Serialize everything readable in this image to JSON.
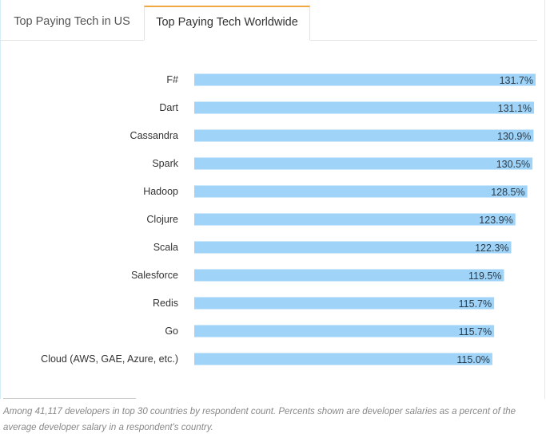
{
  "tabs": [
    {
      "label": "Top Paying Tech in US",
      "active": false
    },
    {
      "label": "Top Paying Tech Worldwide",
      "active": true
    }
  ],
  "colors": {
    "bar": "#9fd3f7",
    "bar_label": "#2a3b4a",
    "category_label": "#333333",
    "active_tab_accent": "#f0a940"
  },
  "chart_data": {
    "type": "bar",
    "orientation": "horizontal",
    "categories": [
      "F#",
      "Dart",
      "Cassandra",
      "Spark",
      "Hadoop",
      "Clojure",
      "Scala",
      "Salesforce",
      "Redis",
      "Go",
      "Cloud (AWS, GAE, Azure, etc.)"
    ],
    "values": [
      131.7,
      131.1,
      130.9,
      130.5,
      128.5,
      123.9,
      122.3,
      119.5,
      115.7,
      115.7,
      115.0
    ],
    "value_labels": [
      "131.7%",
      "131.1%",
      "130.9%",
      "130.5%",
      "128.5%",
      "123.9%",
      "122.3%",
      "119.5%",
      "115.7%",
      "115.7%",
      "115.0%"
    ],
    "unit": "%",
    "title": "",
    "xlabel": "",
    "ylabel": "",
    "xlim": [
      0,
      131.7
    ],
    "grid": false
  },
  "footnote": "Among 41,117 developers in top 30 countries by respondent count. Percents shown are developer salaries as a percent of the average developer salary in a respondent's country."
}
